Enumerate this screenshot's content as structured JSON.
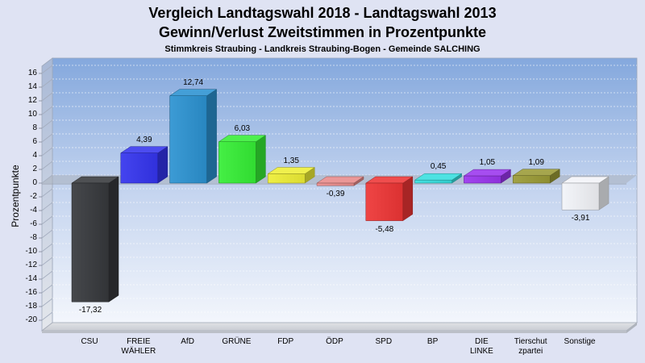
{
  "chart_data": {
    "type": "bar",
    "three_d": true,
    "title": "Vergleich Landtagswahl 2018 - Landtagswahl 2013",
    "title2": "Gewinn/Verlust Zweitstimmen in Prozentpunkte",
    "subtitle": "Stimmkreis Straubing - Landkreis Straubing-Bogen - Gemeinde SALCHING",
    "xlabel": "",
    "ylabel": "Prozentpunkte",
    "ylim": [
      -20,
      16
    ],
    "yticks": [
      16,
      14,
      12,
      10,
      8,
      6,
      4,
      2,
      0,
      -2,
      -4,
      -6,
      -8,
      -10,
      -12,
      -14,
      -16,
      -18,
      -20
    ],
    "grid": true,
    "categories": [
      "CSU",
      "FREIE\nWÄHLER",
      "AfD",
      "GRÜNE",
      "FDP",
      "ÖDP",
      "SPD",
      "BP",
      "DIE\nLINKE",
      "Tierschut\nzpartei",
      "Sonstige"
    ],
    "values": [
      -17.32,
      4.39,
      12.74,
      6.03,
      1.35,
      -0.39,
      -5.48,
      0.45,
      1.05,
      1.09,
      -3.91
    ],
    "data_labels": [
      "-17,32",
      "4,39",
      "12,74",
      "6,03",
      "1,35",
      "-0,39",
      "-5,48",
      "0,45",
      "1,05",
      "1,09",
      "-3,91"
    ],
    "colors": [
      "#36383c",
      "#3434ee",
      "#2b92d1",
      "#35ee35",
      "#eeee35",
      "#e88a8a",
      "#ee3535",
      "#35dede",
      "#9a35ee",
      "#9a9a35",
      "#f2f4f8"
    ]
  }
}
